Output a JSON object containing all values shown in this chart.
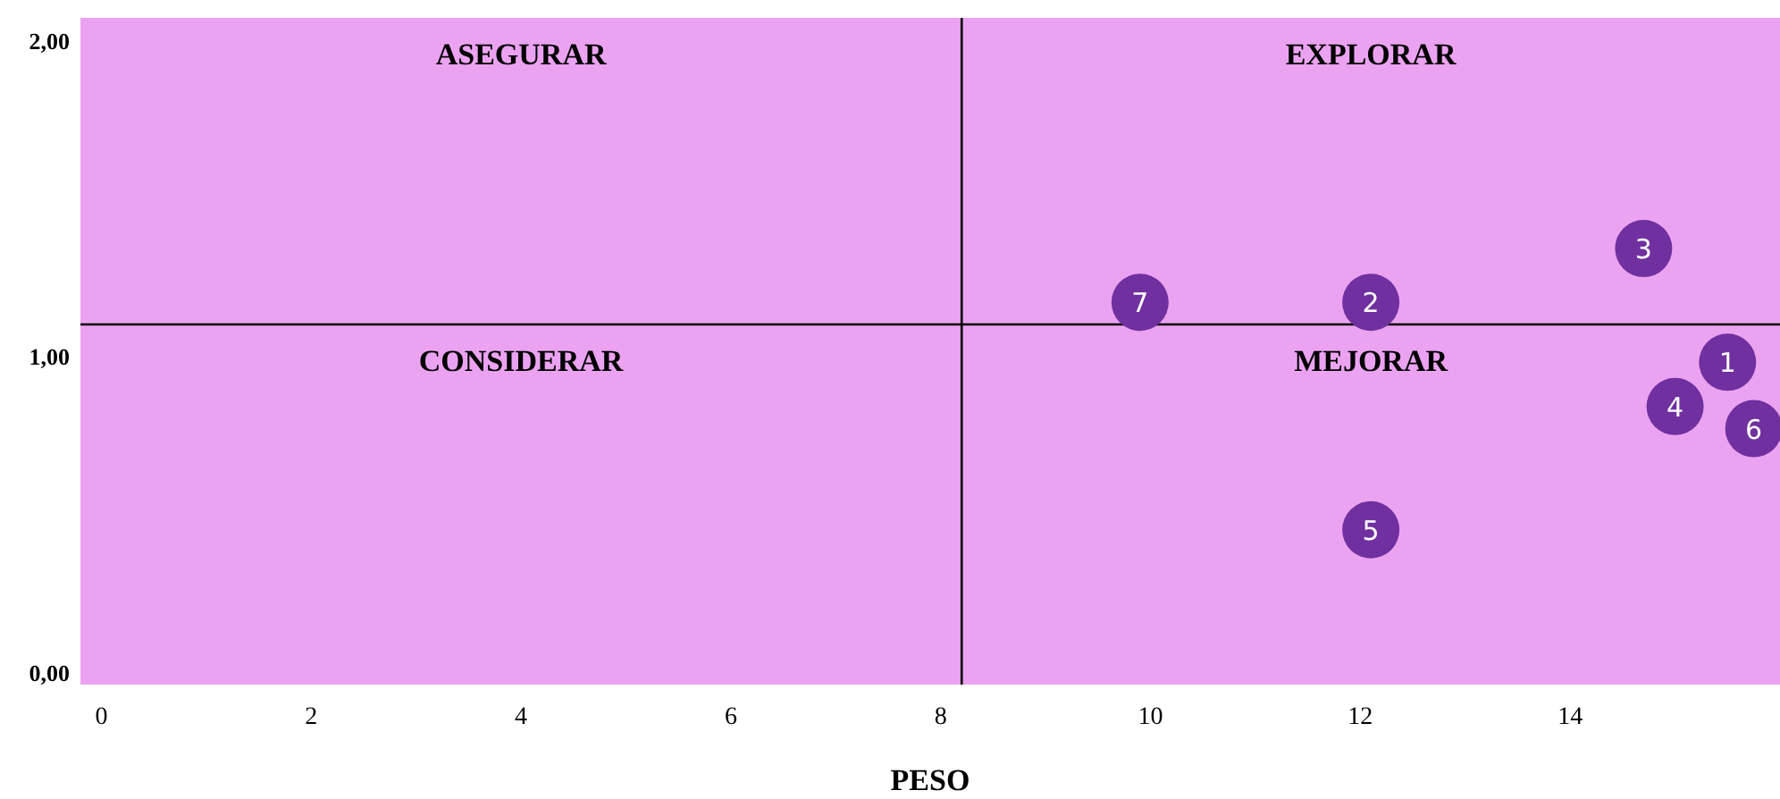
{
  "chart_data": {
    "type": "scatter",
    "xlabel": "PESO",
    "x": [
      15.5,
      12.1,
      14.7,
      15.0,
      12.1,
      15.75,
      9.9
    ],
    "series": [
      {
        "color": "#7030a0",
        "values": [
          0.98,
          1.17,
          1.34,
          0.84,
          0.45,
          0.77,
          1.17
        ]
      }
    ],
    "xlim": [
      -0.2,
      16
    ],
    "xticks": [
      0,
      2,
      4,
      6,
      8,
      10,
      12,
      14
    ],
    "ylim": [
      -0.04,
      2.07
    ],
    "yticks": [
      {
        "value": 0,
        "label": "0,00"
      },
      {
        "value": 1,
        "label": "1,00"
      },
      {
        "value": 2,
        "label": "2,00"
      }
    ],
    "ref_lines": [
      {
        "axis": "x",
        "value": 8.2,
        "color": "#000000"
      },
      {
        "axis": "y",
        "value": 1.1,
        "color": "#000000"
      }
    ],
    "annotations": [
      "ASEGURAR",
      "EXPLORAR",
      "CONSIDERAR",
      "MEJORAR",
      {
        "text": "1",
        "x": 15.5,
        "y": 0.98
      },
      {
        "text": "2",
        "x": 12.1,
        "y": 1.17
      },
      {
        "text": "3",
        "x": 14.7,
        "y": 1.34
      },
      {
        "text": "4",
        "x": 15.0,
        "y": 0.84
      },
      {
        "text": "5",
        "x": 12.1,
        "y": 0.45
      },
      {
        "text": "6",
        "x": 15.75,
        "y": 0.77
      },
      {
        "text": "7",
        "x": 9.9,
        "y": 1.17
      }
    ],
    "marker": "circle",
    "grid": false
  }
}
